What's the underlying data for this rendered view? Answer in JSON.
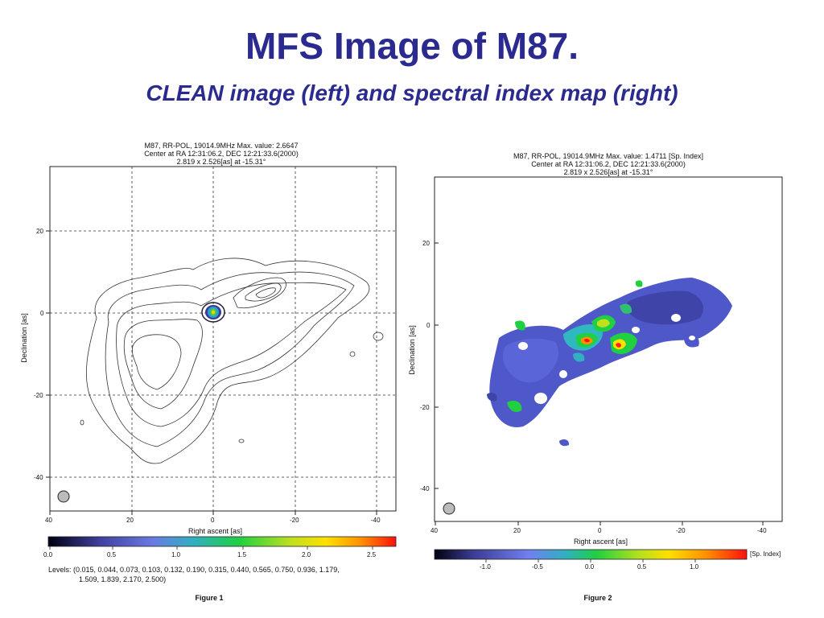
{
  "slide": {
    "title": "MFS Image of M87.",
    "subtitle": "CLEAN image (left) and spectral index map (right)"
  },
  "colors": {
    "title": "#2b2b8f"
  },
  "figure1": {
    "header_lines": [
      "M87, RR-POL, 19014.9MHz Max. value: 2.6647",
      "Center at RA 12:31:06.2, DEC 12:21:33.6(2000)",
      "2.819 x 2.526[as] at -15.31°"
    ],
    "x_axis_label": "Right ascent [as]",
    "y_axis_label": "Declination [as]",
    "x_ticks": [
      "40",
      "20",
      "0",
      "-20",
      "-40"
    ],
    "y_ticks": [
      "20",
      "0",
      "-20",
      "-40"
    ],
    "colorbar_ticks": [
      "0.0",
      "0.5",
      "1.0",
      "1.5",
      "2.0",
      "2.5"
    ],
    "levels_line1": "Levels: (0.015, 0.044, 0.073, 0.103, 0.132, 0.190, 0.315, 0.440, 0.565, 0.750, 0.936, 1.179,",
    "levels_line2": "1.509, 1.839, 2.170, 2.500)",
    "caption": "Figure 1"
  },
  "figure2": {
    "header_lines": [
      "M87, RR-POL, 19014.9MHz Max. value: 1.4711 [Sp. Index]",
      "Center at RA 12:31:06.2, DEC 12:21:33.6(2000)",
      "2.819 x 2.526[as] at -15.31°"
    ],
    "x_axis_label": "Right ascent [as]",
    "y_axis_label": "Declination [as]",
    "x_ticks": [
      "40",
      "20",
      "0",
      "-20",
      "-40"
    ],
    "y_ticks": [
      "20",
      "0",
      "-20",
      "-40"
    ],
    "colorbar_ticks": [
      "-1.0",
      "-0.5",
      "0.0",
      "0.5",
      "1.0"
    ],
    "colorbar_unit": "[Sp. Index]",
    "caption": "Figure 2"
  }
}
